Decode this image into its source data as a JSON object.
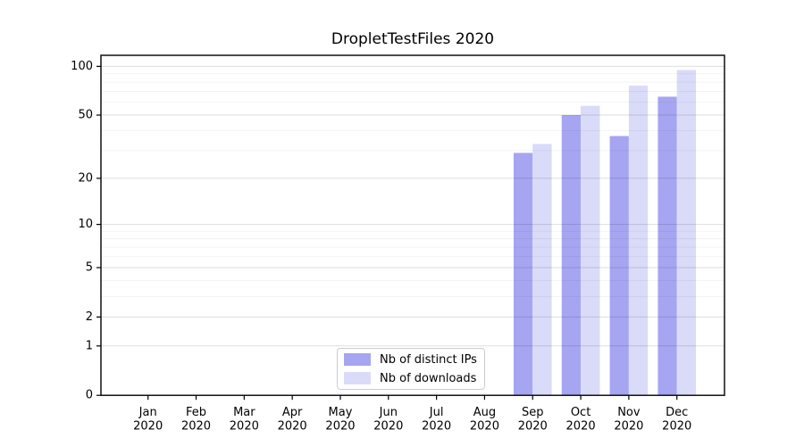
{
  "chart_data": {
    "type": "bar",
    "title": "DropletTestFiles 2020",
    "year_label": "2020",
    "categories": [
      "Jan",
      "Feb",
      "Mar",
      "Apr",
      "May",
      "Jun",
      "Jul",
      "Aug",
      "Sep",
      "Oct",
      "Nov",
      "Dec"
    ],
    "series": [
      {
        "name": "Nb of distinct IPs",
        "color": "#a5a5f1",
        "values": [
          null,
          null,
          null,
          null,
          null,
          null,
          null,
          null,
          29,
          50,
          37,
          65
        ]
      },
      {
        "name": "Nb of downloads",
        "color": "#dadaf9",
        "values": [
          null,
          null,
          null,
          null,
          null,
          null,
          null,
          null,
          33,
          57,
          76,
          95
        ]
      }
    ],
    "y_axis": {
      "scale": "log1p",
      "ticks": [
        0,
        1,
        2,
        5,
        10,
        20,
        50,
        100
      ],
      "minor_ticks": [
        3,
        4,
        6,
        7,
        8,
        9,
        30,
        40,
        60,
        70,
        80,
        90
      ],
      "range": [
        0,
        100
      ]
    },
    "x_axis": {
      "tick_count": 12
    },
    "legend": {
      "position": "lower center"
    },
    "grid": true,
    "colors": {
      "major_grid": "rgba(0,0,0,0.13)",
      "minor_grid": "rgba(0,0,0,0.05)",
      "spine": "#000000",
      "text": "#000000",
      "background": "#ffffff"
    }
  }
}
